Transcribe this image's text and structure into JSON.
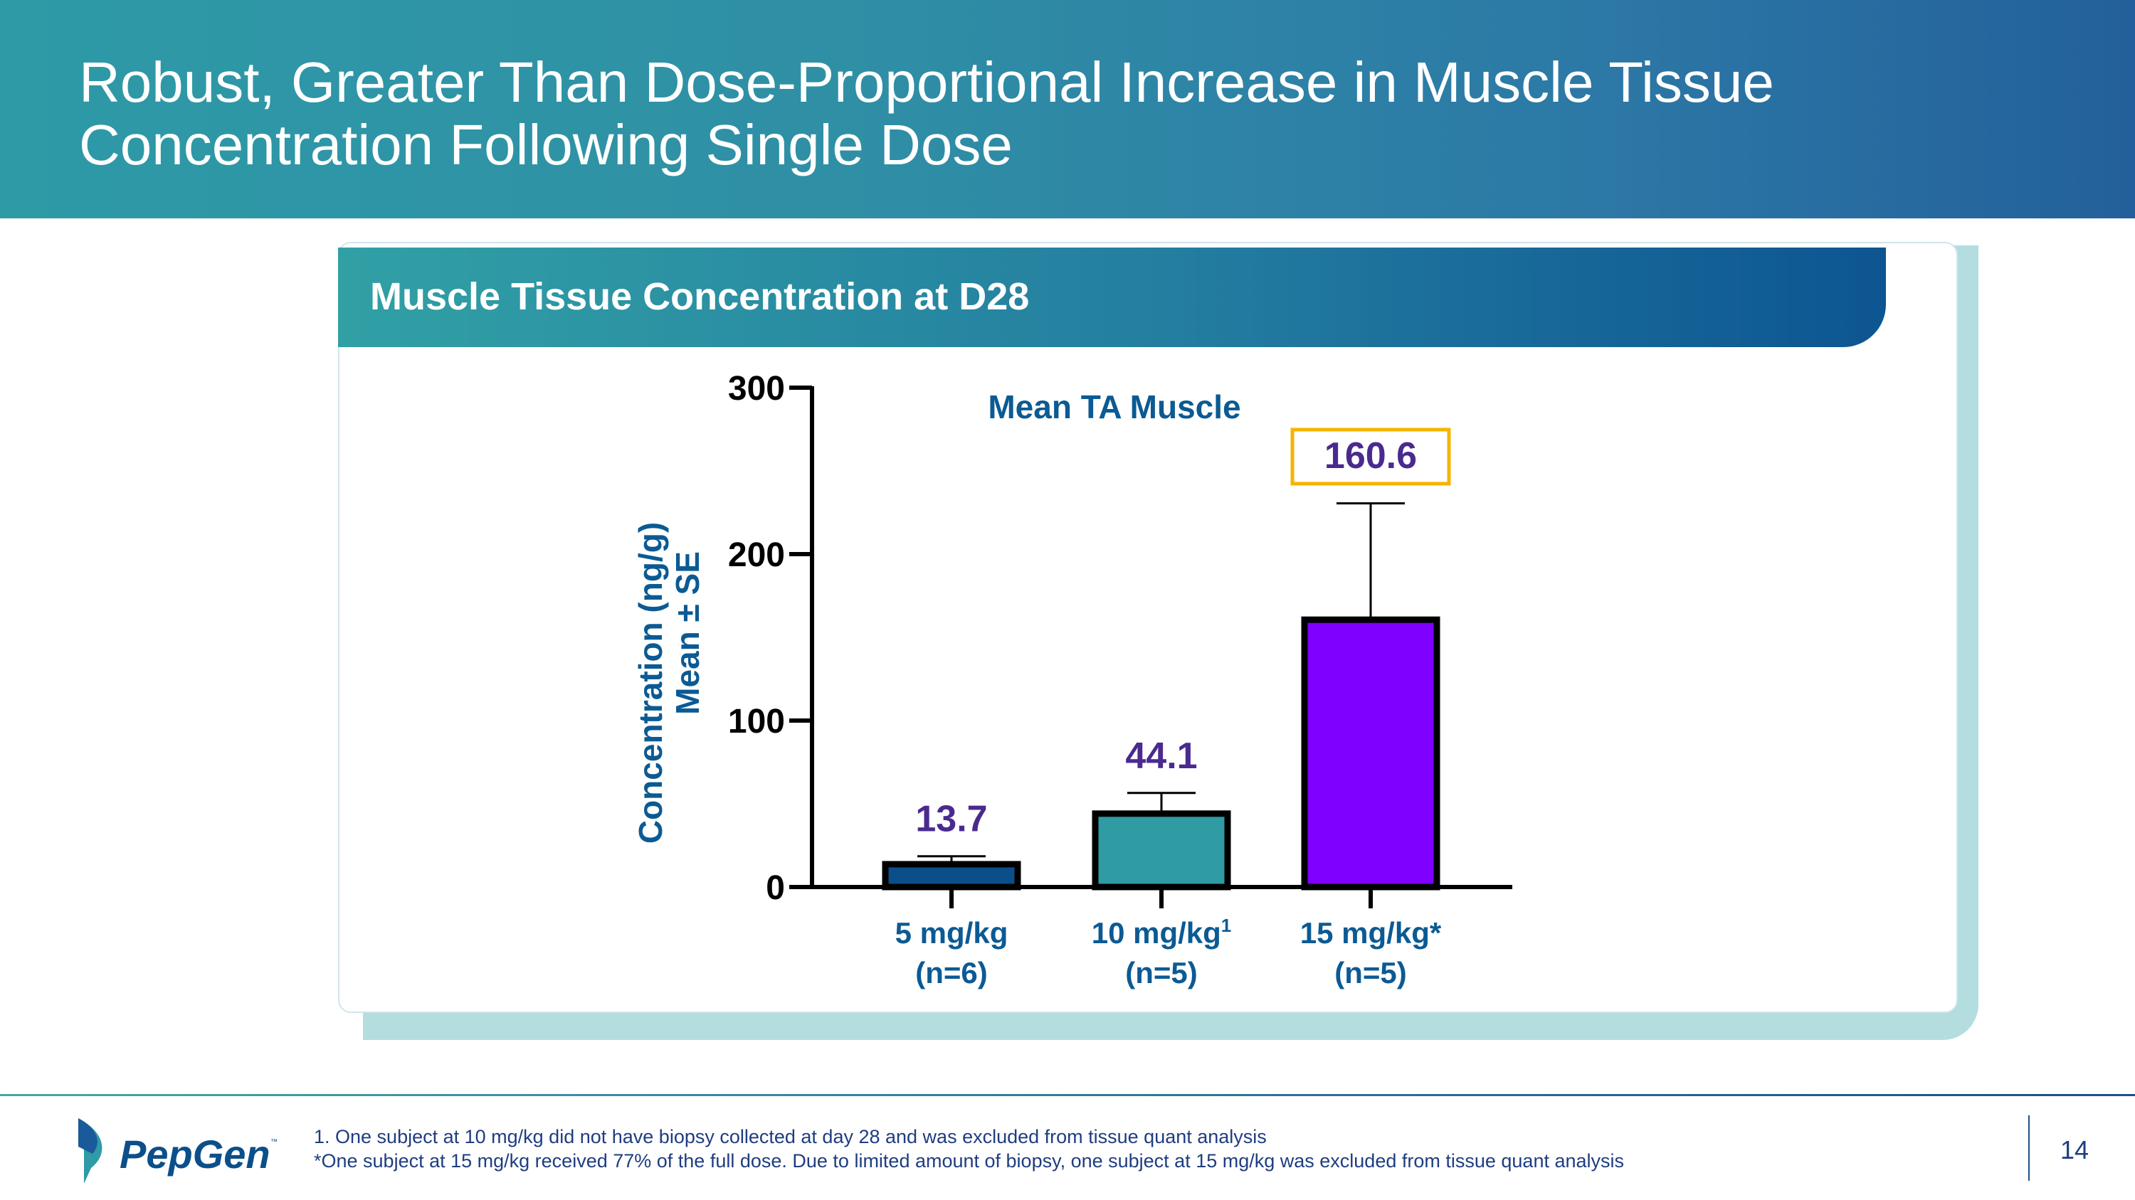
{
  "slide": {
    "title_line1": "Robust, Greater Than Dose-Proportional Increase in Muscle Tissue",
    "title_line2": "Concentration Following Single Dose",
    "card_title": "Muscle Tissue Concentration at D28",
    "logo_text": "PepGen",
    "footnotes": [
      "1. One subject at 10 mg/kg did not have biopsy collected at day 28 and was excluded from tissue quant analysis",
      "*One subject at 15 mg/kg received 77% of the full dose. Due to limited amount of biopsy, one subject at 15 mg/kg was excluded from tissue quant analysis"
    ],
    "page_number": "14"
  },
  "chart_data": {
    "type": "bar",
    "title": "Mean TA Muscle",
    "ylabel_line1": "Concentration (ng/g)",
    "ylabel_line2": "Mean ± SE",
    "ylim": [
      0,
      300
    ],
    "yticks": [
      "0",
      "100",
      "200",
      "300"
    ],
    "categories": [
      {
        "line1": "5 mg/kg",
        "sup": "",
        "line2": "(n=6)"
      },
      {
        "line1": "10 mg/kg",
        "sup": "1",
        "line2": "(n=5)"
      },
      {
        "line1": "15 mg/kg*",
        "sup": "",
        "line2": "(n=5)"
      }
    ],
    "values": [
      13.7,
      44.1,
      160.6
    ],
    "value_labels": [
      "13.7",
      "44.1",
      "160.6"
    ],
    "error_upper": [
      18.5,
      56.5,
      230.5
    ],
    "colors": [
      "#0b4f8a",
      "#2f9ba3",
      "#7f00ff"
    ],
    "highlighted_label_index": 2,
    "highlight_color": "#f5b400",
    "label_color": "#4a2a8f",
    "axis_text_color": "#0b5a94"
  }
}
